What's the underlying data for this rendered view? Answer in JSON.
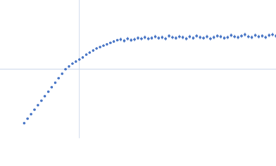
{
  "chart_data": {
    "type": "scatter",
    "color": "#3a6bc1",
    "error_color": "#9db4e0",
    "grid_color": "#c9d6e8",
    "xlim": [
      -115,
      285
    ],
    "ylim": [
      -100,
      100
    ],
    "xticks": [
      0
    ],
    "yticks": [
      0
    ],
    "grid": true,
    "x": [
      -80,
      -75,
      -70,
      -65,
      -60,
      -55,
      -50,
      -45,
      -40,
      -35,
      -30,
      -25,
      -20,
      -15,
      -10,
      -5,
      0,
      5,
      10,
      15,
      20,
      25,
      30,
      35,
      40,
      45,
      50,
      55,
      60,
      65,
      70,
      75,
      80,
      85,
      90,
      95,
      100,
      105,
      110,
      115,
      120,
      125,
      130,
      135,
      140,
      145,
      150,
      155,
      160,
      165,
      170,
      175,
      180,
      185,
      190,
      195,
      200,
      205,
      210,
      215,
      220,
      225,
      230,
      235,
      240,
      245,
      250,
      255,
      260,
      265,
      270,
      275,
      280,
      285
    ],
    "values": [
      -78,
      -71.5,
      -65,
      -58.5,
      -52,
      -45.5,
      -39,
      -32.5,
      -26,
      -19.5,
      -13,
      -6.5,
      0,
      4,
      8,
      11,
      14,
      17,
      21,
      24,
      27,
      30,
      32,
      34,
      36,
      38,
      40,
      42,
      43,
      41,
      44,
      42,
      43,
      45,
      44,
      46,
      44,
      45,
      47,
      45,
      46,
      44,
      48,
      46,
      45,
      47,
      46,
      44,
      47,
      45,
      48,
      46,
      45,
      47,
      44,
      46,
      48,
      47,
      45,
      46,
      49,
      47,
      46,
      48,
      50,
      47,
      46,
      49,
      47,
      48,
      46,
      49,
      50,
      48
    ],
    "errors": [
      1,
      1,
      1,
      1,
      1,
      1,
      1,
      1,
      1,
      1,
      1,
      1,
      1,
      1,
      1,
      1,
      1,
      1,
      1,
      1,
      1,
      1,
      1,
      1,
      1,
      1,
      1,
      1,
      3,
      3,
      3,
      3,
      3,
      3,
      3,
      3,
      3,
      3,
      3,
      3,
      3,
      3,
      3,
      3,
      3,
      3,
      3,
      3,
      3,
      3,
      3,
      3,
      3,
      3,
      3,
      3,
      3,
      3,
      3,
      3,
      3,
      3,
      3,
      3,
      3,
      3,
      3,
      3,
      3,
      3,
      3,
      3,
      3,
      3
    ]
  }
}
